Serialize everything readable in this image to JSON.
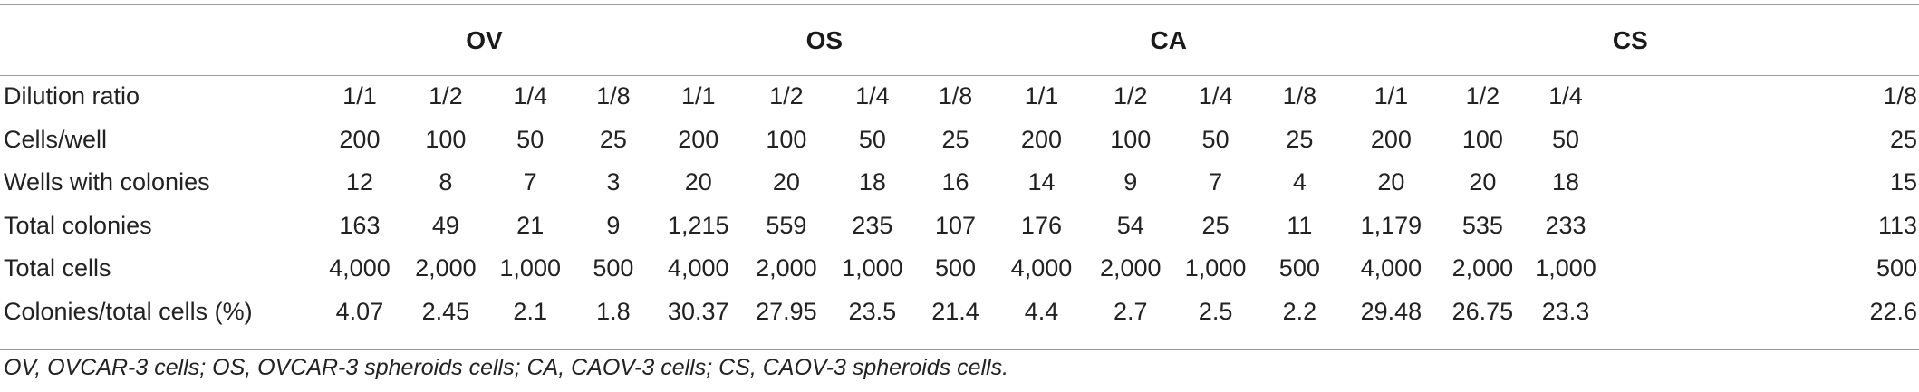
{
  "table": {
    "groups": [
      "OV",
      "OS",
      "CA",
      "CS"
    ],
    "rows": [
      {
        "label": "Dilution ratio",
        "values": [
          "1/1",
          "1/2",
          "1/4",
          "1/8",
          "1/1",
          "1/2",
          "1/4",
          "1/8",
          "1/1",
          "1/2",
          "1/4",
          "1/8",
          "1/1",
          "1/2",
          "1/4",
          "1/8"
        ]
      },
      {
        "label": "Cells/well",
        "values": [
          "200",
          "100",
          "50",
          "25",
          "200",
          "100",
          "50",
          "25",
          "200",
          "100",
          "50",
          "25",
          "200",
          "100",
          "50",
          "25"
        ]
      },
      {
        "label": "Wells with colonies",
        "values": [
          "12",
          "8",
          "7",
          "3",
          "20",
          "20",
          "18",
          "16",
          "14",
          "9",
          "7",
          "4",
          "20",
          "20",
          "18",
          "15"
        ]
      },
      {
        "label": "Total colonies",
        "values": [
          "163",
          "49",
          "21",
          "9",
          "1,215",
          "559",
          "235",
          "107",
          "176",
          "54",
          "25",
          "11",
          "1,179",
          "535",
          "233",
          "113"
        ]
      },
      {
        "label": "Total cells",
        "values": [
          "4,000",
          "2,000",
          "1,000",
          "500",
          "4,000",
          "2,000",
          "1,000",
          "500",
          "4,000",
          "2,000",
          "1,000",
          "500",
          "4,000",
          "2,000",
          "1,000",
          "500"
        ]
      },
      {
        "label": "Colonies/total cells (%)",
        "values": [
          "4.07",
          "2.45",
          "2.1",
          "1.8",
          "30.37",
          "27.95",
          "23.5",
          "21.4",
          "4.4",
          "2.7",
          "2.5",
          "2.2",
          "29.48",
          "26.75",
          "23.3",
          "22.6"
        ]
      }
    ]
  },
  "footnote": "OV, OVCAR-3 cells; OS, OVCAR-3 spheroids cells; CA, CAOV-3 cells; CS, CAOV-3 spheroids cells."
}
